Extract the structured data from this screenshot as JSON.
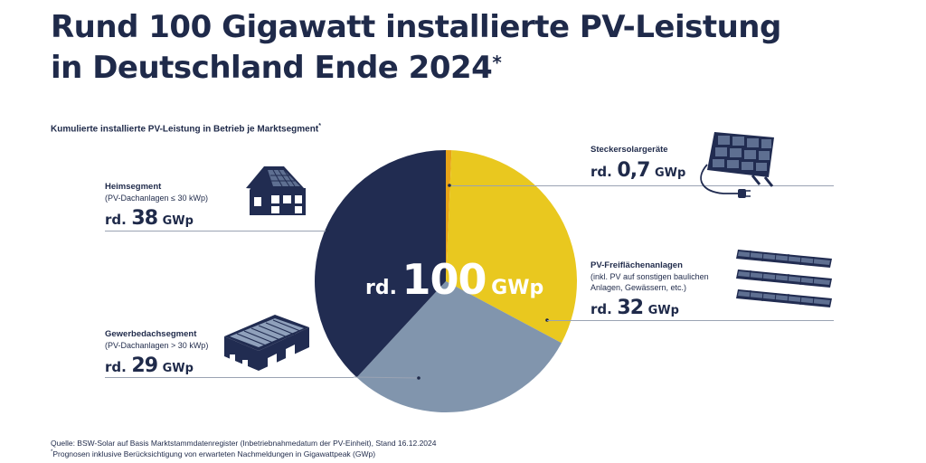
{
  "header": {
    "title_line1": "Rund 100 Gigawatt installierte PV-Leistung",
    "title_line2": "in Deutschland Ende 2024",
    "title_mark": "*"
  },
  "chart_data": {
    "type": "pie",
    "title": "Rund 100 Gigawatt installierte PV-Leistung in Deutschland Ende 2024",
    "subtitle": "Kumulierte installierte PV-Leistung in Betrieb je Marktsegment",
    "subtitle_mark": "*",
    "unit": "GWp",
    "total": {
      "prefix": "rd.",
      "value": "100",
      "unit": "GWp"
    },
    "slices": [
      {
        "name": "Steckersolargeräte",
        "sub": "",
        "value": 0.7,
        "display": "0,7",
        "color": "#e8a317"
      },
      {
        "name": "PV-Freiflächenanlagen",
        "sub": "(inkl. PV auf sonstigen baulichen Anlagen, Gewässern, etc.)",
        "value": 32,
        "display": "32",
        "color": "#e9c81f"
      },
      {
        "name": "Gewerbedachsegment",
        "sub": "(PV-Dachanlagen > 30 kWp)",
        "value": 29,
        "display": "29",
        "color": "#8195ad"
      },
      {
        "name": "Heimsegment",
        "sub": "(PV-Dachanlagen ≤ 30 kWp)",
        "value": 38,
        "display": "38",
        "color": "#212c51"
      }
    ],
    "prefix": "rd."
  },
  "labels": {
    "stecker": {
      "name": "Steckersolargeräte",
      "prefix": "rd.",
      "value": "0,7",
      "unit": "GWp"
    },
    "freiflaeche": {
      "name": "PV-Freiflächenanlagen",
      "sub1": "(inkl. PV auf sonstigen baulichen",
      "sub2": "Anlagen, Gewässern, etc.)",
      "prefix": "rd.",
      "value": "32",
      "unit": "GWp"
    },
    "gewerbe": {
      "name": "Gewerbedachsegment",
      "sub1": "(PV-Dachanlagen > 30 kWp)",
      "prefix": "rd.",
      "value": "29",
      "unit": "GWp"
    },
    "heim": {
      "name": "Heimsegment",
      "sub1": "(PV-Dachanlagen ≤ 30 kWp)",
      "prefix": "rd.",
      "value": "38",
      "unit": "GWp"
    }
  },
  "footer": {
    "source": "Quelle: BSW-Solar auf Basis Marktstammdatenregister (Inbetriebnahmedatum der PV-Einheit), Stand 16.12.2024",
    "note_mark": "*",
    "note": "Prognosen inklusive Berücksichtigung von erwarteten Nachmeldungen in Gigawattpeak (GWp)"
  },
  "icons": [
    "house-solar-icon",
    "commercial-roof-solar-icon",
    "plug-in-solar-icon",
    "solar-field-icon"
  ]
}
